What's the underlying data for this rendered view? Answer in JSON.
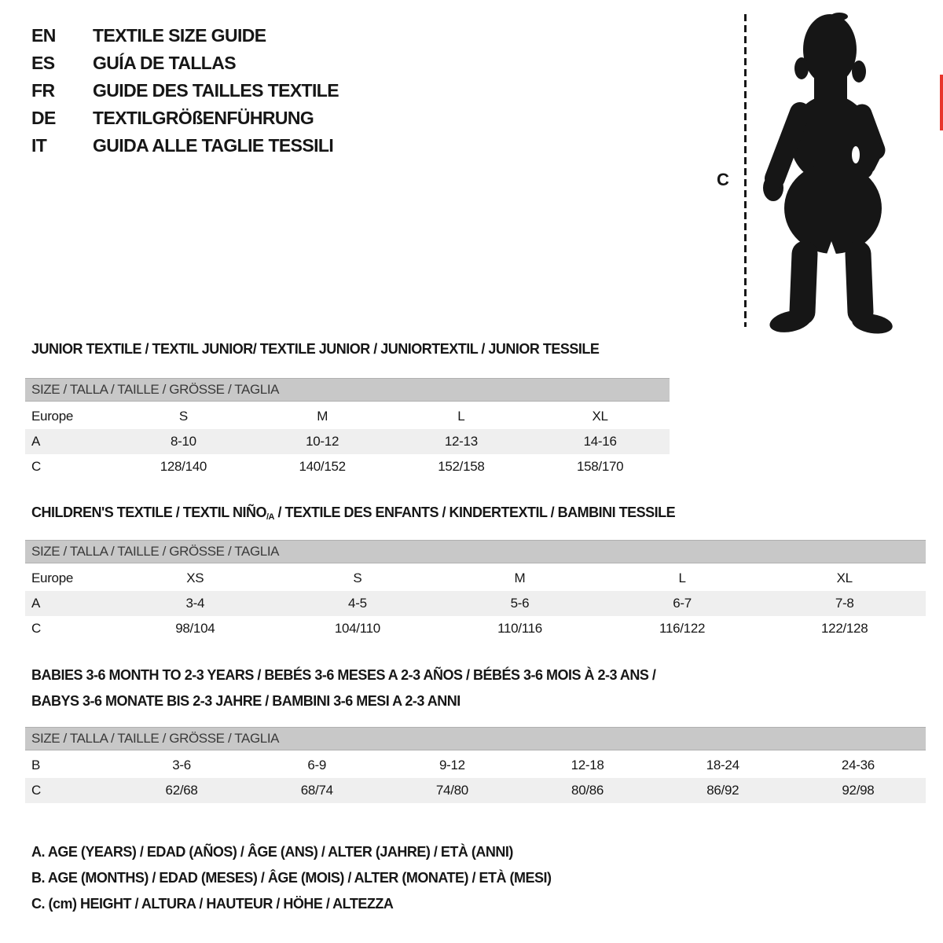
{
  "colors": {
    "ink": "#161616",
    "bar-gray": "#c8c8c8",
    "bar-edge": "#b0b0b0",
    "bar-text": "#3a3a3a",
    "stripe-gray": "#efefef",
    "accent-red": "#e8352b"
  },
  "header": {
    "languages": [
      {
        "code": "EN",
        "title": "TEXTILE SIZE GUIDE"
      },
      {
        "code": "ES",
        "title": "GUÍA DE TALLAS"
      },
      {
        "code": "FR",
        "title": "GUIDE DES TAILLES TEXTILE"
      },
      {
        "code": "DE",
        "title": "TEXTILGRÖßENFÜHRUNG"
      },
      {
        "code": "IT",
        "title": "GUIDA ALLE TAGLIE TESSILI"
      }
    ]
  },
  "figure": {
    "measure_label": "C",
    "image_alt": "baby-silhouette"
  },
  "sections": [
    {
      "title": "JUNIOR TEXTILE / TEXTIL JUNIOR/ TEXTILE JUNIOR / JUNIORTEXTIL / JUNIOR TESSILE",
      "size_header": "SIZE / TALLA / TAILLE / GRÖSSE / TAGLIA",
      "rows": [
        {
          "label": "Europe",
          "values": [
            "S",
            "M",
            "L",
            "XL"
          ],
          "shaded": false
        },
        {
          "label": "A",
          "values": [
            "8-10",
            "10-12",
            "12-13",
            "14-16"
          ],
          "shaded": true
        },
        {
          "label": "C",
          "values": [
            "128/140",
            "140/152",
            "152/158",
            "158/170"
          ],
          "shaded": false
        }
      ]
    },
    {
      "title_pre": "CHILDREN'S TEXTILE / TEXTIL NIÑO",
      "title_sub": "/A",
      "title_post": " / TEXTILE DES ENFANTS / KINDERTEXTIL / BAMBINI TESSILE",
      "size_header": "SIZE / TALLA / TAILLE / GRÖSSE / TAGLIA",
      "rows": [
        {
          "label": "Europe",
          "values": [
            "XS",
            "S",
            "M",
            "L",
            "XL"
          ],
          "shaded": false
        },
        {
          "label": "A",
          "values": [
            "3-4",
            "4-5",
            "5-6",
            "6-7",
            "7-8"
          ],
          "shaded": true
        },
        {
          "label": "C",
          "values": [
            "98/104",
            "104/110",
            "110/116",
            "116/122",
            "122/128"
          ],
          "shaded": false
        }
      ]
    },
    {
      "title_line1": "BABIES 3-6 MONTH TO 2-3 YEARS / BEBÉS 3-6 MESES A 2-3 AÑOS / BÉBÉS 3-6 MOIS À 2-3 ANS /",
      "title_line2": "BABYS 3-6 MONATE BIS 2-3 JAHRE / BAMBINI 3-6 MESI A 2-3 ANNI",
      "size_header": "SIZE / TALLA / TAILLE / GRÖSSE / TAGLIA",
      "rows": [
        {
          "label": "B",
          "values": [
            "3-6",
            "6-9",
            "9-12",
            "12-18",
            "18-24",
            "24-36"
          ],
          "shaded": false
        },
        {
          "label": "C",
          "values": [
            "62/68",
            "68/74",
            "74/80",
            "80/86",
            "86/92",
            "92/98"
          ],
          "shaded": true
        }
      ]
    }
  ],
  "legend": [
    "A. AGE (YEARS) / EDAD (AÑOS) / ÂGE (ANS) / ALTER (JAHRE) / ETÀ (ANNI)",
    "B. AGE (MONTHS) / EDAD (MESES) / ÂGE (MOIS) / ALTER (MONATE) / ETÀ (MESI)",
    "C. (cm) HEIGHT / ALTURA / HAUTEUR / HÖHE / ALTEZZA"
  ]
}
